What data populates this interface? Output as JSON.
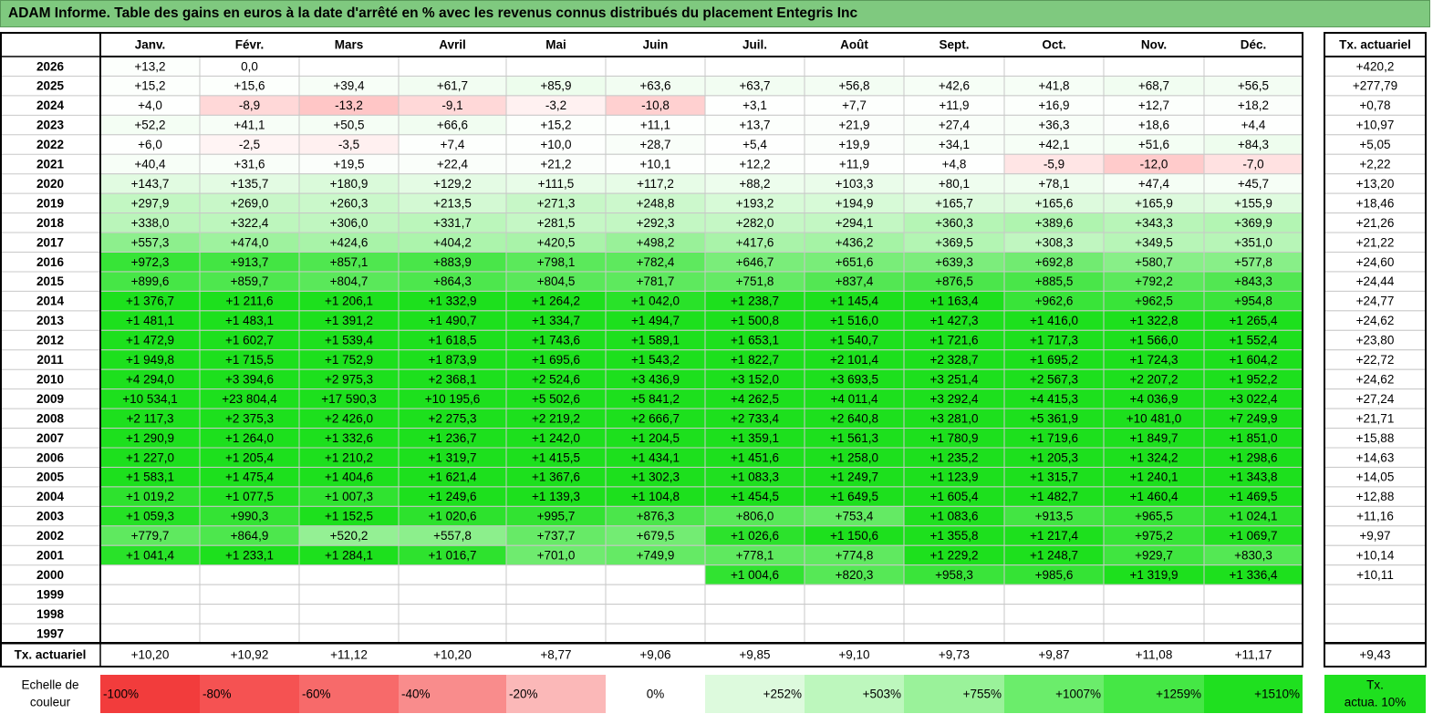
{
  "title": "ADAM Informe. Table des gains en euros à la date d'arrêté en % avec les revenus connus distribués du placement Entegris Inc",
  "chart_data": {
    "type": "heatmap",
    "months": [
      "Janv.",
      "Févr.",
      "Mars",
      "Avril",
      "Mai",
      "Juin",
      "Juil.",
      "Août",
      "Sept.",
      "Oct.",
      "Nov.",
      "Déc."
    ],
    "rate_header": "Tx. actuariel",
    "rows": [
      {
        "year": "2026",
        "values": [
          "+13,2",
          "0,0",
          null,
          null,
          null,
          null,
          null,
          null,
          null,
          null,
          null,
          null
        ],
        "rate": "+420,2"
      },
      {
        "year": "2025",
        "values": [
          "+15,2",
          "+15,6",
          "+39,4",
          "+61,7",
          "+85,9",
          "+63,6",
          "+63,7",
          "+56,8",
          "+42,6",
          "+41,8",
          "+68,7",
          "+56,5"
        ],
        "rate": "+277,79"
      },
      {
        "year": "2024",
        "values": [
          "+4,0",
          "-8,9",
          "-13,2",
          "-9,1",
          "-3,2",
          "-10,8",
          "+3,1",
          "+7,7",
          "+11,9",
          "+16,9",
          "+12,7",
          "+18,2"
        ],
        "rate": "+0,78"
      },
      {
        "year": "2023",
        "values": [
          "+52,2",
          "+41,1",
          "+50,5",
          "+66,6",
          "+15,2",
          "+11,1",
          "+13,7",
          "+21,9",
          "+27,4",
          "+36,3",
          "+18,6",
          "+4,4"
        ],
        "rate": "+10,97"
      },
      {
        "year": "2022",
        "values": [
          "+6,0",
          "-2,5",
          "-3,5",
          "+7,4",
          "+10,0",
          "+28,7",
          "+5,4",
          "+19,9",
          "+34,1",
          "+42,1",
          "+51,6",
          "+84,3"
        ],
        "rate": "+5,05"
      },
      {
        "year": "2021",
        "values": [
          "+40,4",
          "+31,6",
          "+19,5",
          "+22,4",
          "+21,2",
          "+10,1",
          "+12,2",
          "+11,9",
          "+4,8",
          "-5,9",
          "-12,0",
          "-7,0"
        ],
        "rate": "+2,22"
      },
      {
        "year": "2020",
        "values": [
          "+143,7",
          "+135,7",
          "+180,9",
          "+129,2",
          "+111,5",
          "+117,2",
          "+88,2",
          "+103,3",
          "+80,1",
          "+78,1",
          "+47,4",
          "+45,7"
        ],
        "rate": "+13,20"
      },
      {
        "year": "2019",
        "values": [
          "+297,9",
          "+269,0",
          "+260,3",
          "+213,5",
          "+271,3",
          "+248,8",
          "+193,2",
          "+194,9",
          "+165,7",
          "+165,6",
          "+165,9",
          "+155,9"
        ],
        "rate": "+18,46"
      },
      {
        "year": "2018",
        "values": [
          "+338,0",
          "+322,4",
          "+306,0",
          "+331,7",
          "+281,5",
          "+292,3",
          "+282,0",
          "+294,1",
          "+360,3",
          "+389,6",
          "+343,3",
          "+369,9"
        ],
        "rate": "+21,26"
      },
      {
        "year": "2017",
        "values": [
          "+557,3",
          "+474,0",
          "+424,6",
          "+404,2",
          "+420,5",
          "+498,2",
          "+417,6",
          "+436,2",
          "+369,5",
          "+308,3",
          "+349,5",
          "+351,0"
        ],
        "rate": "+21,22"
      },
      {
        "year": "2016",
        "values": [
          "+972,3",
          "+913,7",
          "+857,1",
          "+883,9",
          "+798,1",
          "+782,4",
          "+646,7",
          "+651,6",
          "+639,3",
          "+692,8",
          "+580,7",
          "+577,8"
        ],
        "rate": "+24,60"
      },
      {
        "year": "2015",
        "values": [
          "+899,6",
          "+859,7",
          "+804,7",
          "+864,3",
          "+804,5",
          "+781,7",
          "+751,8",
          "+837,4",
          "+876,5",
          "+885,5",
          "+792,2",
          "+843,3"
        ],
        "rate": "+24,44"
      },
      {
        "year": "2014",
        "values": [
          "+1 376,7",
          "+1 211,6",
          "+1 206,1",
          "+1 332,9",
          "+1 264,2",
          "+1 042,0",
          "+1 238,7",
          "+1 145,4",
          "+1 163,4",
          "+962,6",
          "+962,5",
          "+954,8"
        ],
        "rate": "+24,77"
      },
      {
        "year": "2013",
        "values": [
          "+1 481,1",
          "+1 483,1",
          "+1 391,2",
          "+1 490,7",
          "+1 334,7",
          "+1 494,7",
          "+1 500,8",
          "+1 516,0",
          "+1 427,3",
          "+1 416,0",
          "+1 322,8",
          "+1 265,4"
        ],
        "rate": "+24,62"
      },
      {
        "year": "2012",
        "values": [
          "+1 472,9",
          "+1 602,7",
          "+1 539,4",
          "+1 618,5",
          "+1 743,6",
          "+1 589,1",
          "+1 653,1",
          "+1 540,7",
          "+1 721,6",
          "+1 717,3",
          "+1 566,0",
          "+1 552,4"
        ],
        "rate": "+23,80"
      },
      {
        "year": "2011",
        "values": [
          "+1 949,8",
          "+1 715,5",
          "+1 752,9",
          "+1 873,9",
          "+1 695,6",
          "+1 543,2",
          "+1 822,7",
          "+2 101,4",
          "+2 328,7",
          "+1 695,2",
          "+1 724,3",
          "+1 604,2"
        ],
        "rate": "+22,72"
      },
      {
        "year": "2010",
        "values": [
          "+4 294,0",
          "+3 394,6",
          "+2 975,3",
          "+2 368,1",
          "+2 524,6",
          "+3 436,9",
          "+3 152,0",
          "+3 693,5",
          "+3 251,4",
          "+2 567,3",
          "+2 207,2",
          "+1 952,2"
        ],
        "rate": "+24,62"
      },
      {
        "year": "2009",
        "values": [
          "+10 534,1",
          "+23 804,4",
          "+17 590,3",
          "+10 195,6",
          "+5 502,6",
          "+5 841,2",
          "+4 262,5",
          "+4 011,4",
          "+3 292,4",
          "+4 415,3",
          "+4 036,9",
          "+3 022,4"
        ],
        "rate": "+27,24"
      },
      {
        "year": "2008",
        "values": [
          "+2 117,3",
          "+2 375,3",
          "+2 426,0",
          "+2 275,3",
          "+2 219,2",
          "+2 666,7",
          "+2 733,4",
          "+2 640,8",
          "+3 281,0",
          "+5 361,9",
          "+10 481,0",
          "+7 249,9"
        ],
        "rate": "+21,71"
      },
      {
        "year": "2007",
        "values": [
          "+1 290,9",
          "+1 264,0",
          "+1 332,6",
          "+1 236,7",
          "+1 242,0",
          "+1 204,5",
          "+1 359,1",
          "+1 561,3",
          "+1 780,9",
          "+1 719,6",
          "+1 849,7",
          "+1 851,0"
        ],
        "rate": "+15,88"
      },
      {
        "year": "2006",
        "values": [
          "+1 227,0",
          "+1 205,4",
          "+1 210,2",
          "+1 319,7",
          "+1 415,5",
          "+1 434,1",
          "+1 451,6",
          "+1 258,0",
          "+1 235,2",
          "+1 205,3",
          "+1 324,2",
          "+1 298,6"
        ],
        "rate": "+14,63"
      },
      {
        "year": "2005",
        "values": [
          "+1 583,1",
          "+1 475,4",
          "+1 404,6",
          "+1 621,4",
          "+1 367,6",
          "+1 302,3",
          "+1 083,3",
          "+1 249,7",
          "+1 123,9",
          "+1 315,7",
          "+1 240,1",
          "+1 343,8"
        ],
        "rate": "+14,05"
      },
      {
        "year": "2004",
        "values": [
          "+1 019,2",
          "+1 077,5",
          "+1 007,3",
          "+1 249,6",
          "+1 139,3",
          "+1 104,8",
          "+1 454,5",
          "+1 649,5",
          "+1 605,4",
          "+1 482,7",
          "+1 460,4",
          "+1 469,5"
        ],
        "rate": "+12,88"
      },
      {
        "year": "2003",
        "values": [
          "+1 059,3",
          "+990,3",
          "+1 152,5",
          "+1 020,6",
          "+995,7",
          "+876,3",
          "+806,0",
          "+753,4",
          "+1 083,6",
          "+913,5",
          "+965,5",
          "+1 024,1"
        ],
        "rate": "+11,16"
      },
      {
        "year": "2002",
        "values": [
          "+779,7",
          "+864,9",
          "+520,2",
          "+557,8",
          "+737,7",
          "+679,5",
          "+1 026,6",
          "+1 150,6",
          "+1 355,8",
          "+1 217,4",
          "+975,2",
          "+1 069,7"
        ],
        "rate": "+9,97"
      },
      {
        "year": "2001",
        "values": [
          "+1 041,4",
          "+1 233,1",
          "+1 284,1",
          "+1 016,7",
          "+701,0",
          "+749,9",
          "+778,1",
          "+774,8",
          "+1 229,2",
          "+1 248,7",
          "+929,7",
          "+830,3"
        ],
        "rate": "+10,14"
      },
      {
        "year": "2000",
        "values": [
          null,
          null,
          null,
          null,
          null,
          null,
          "+1 004,6",
          "+820,3",
          "+958,3",
          "+985,6",
          "+1 319,9",
          "+1 336,4"
        ],
        "rate": "+10,11"
      },
      {
        "year": "1999",
        "values": [
          null,
          null,
          null,
          null,
          null,
          null,
          null,
          null,
          null,
          null,
          null,
          null
        ],
        "rate": null
      },
      {
        "year": "1998",
        "values": [
          null,
          null,
          null,
          null,
          null,
          null,
          null,
          null,
          null,
          null,
          null,
          null
        ],
        "rate": null
      },
      {
        "year": "1997",
        "values": [
          null,
          null,
          null,
          null,
          null,
          null,
          null,
          null,
          null,
          null,
          null,
          null
        ],
        "rate": null
      }
    ],
    "footer": {
      "label": "Tx. actuariel",
      "values": [
        "+10,20",
        "+10,92",
        "+11,12",
        "+10,20",
        "+8,77",
        "+9,06",
        "+9,85",
        "+9,10",
        "+9,73",
        "+9,87",
        "+11,08",
        "+11,17"
      ],
      "rate": "+9,43"
    },
    "legend": {
      "label_line1": "Echelle de",
      "label_line2": "couleur",
      "steps": [
        {
          "label": "-100%",
          "color": "#f23c3c"
        },
        {
          "label": "-80%",
          "color": "#f55252"
        },
        {
          "label": "-60%",
          "color": "#f76a6a"
        },
        {
          "label": "-40%",
          "color": "#f98c8c"
        },
        {
          "label": "-20%",
          "color": "#fbb8b8"
        },
        {
          "label": "0%",
          "color": "#ffffff"
        },
        {
          "label": "+252%",
          "color": "#ddfadd"
        },
        {
          "label": "+503%",
          "color": "#bdf7bd"
        },
        {
          "label": "+755%",
          "color": "#9af29a"
        },
        {
          "label": "+1007%",
          "color": "#6bed6b"
        },
        {
          "label": "+1259%",
          "color": "#45e745"
        },
        {
          "label": "+1510%",
          "color": "#1fe01f"
        }
      ],
      "rate_line1": "Tx.",
      "rate_line2": "actua. 10%",
      "rate_color": "#1fe01f"
    }
  }
}
